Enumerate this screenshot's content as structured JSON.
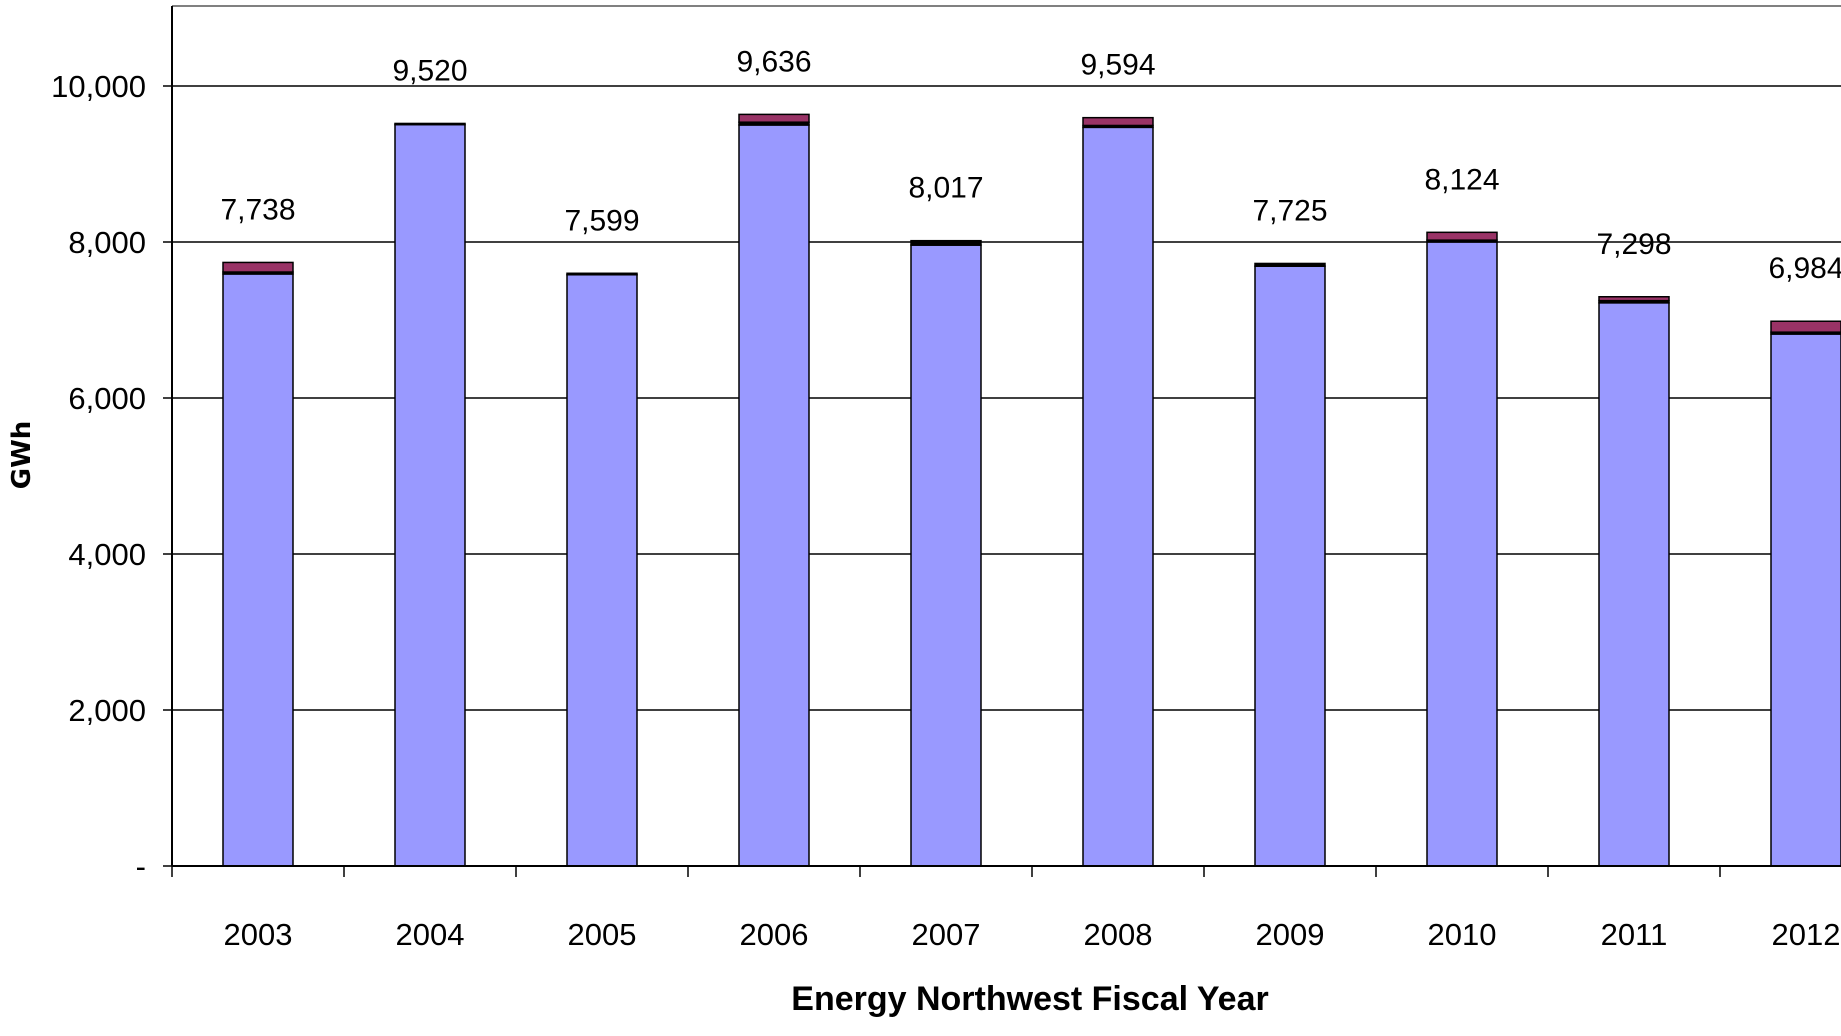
{
  "chart_data": {
    "type": "bar",
    "stacked": true,
    "title": "",
    "xlabel": "Energy Northwest Fiscal Year",
    "ylabel": "GWh",
    "ylim": [
      0,
      10000
    ],
    "yticks": [
      {
        "value": 0,
        "label": "-"
      },
      {
        "value": 2000,
        "label": "2,000"
      },
      {
        "value": 4000,
        "label": "4,000"
      },
      {
        "value": 6000,
        "label": "6,000"
      },
      {
        "value": 8000,
        "label": "8,000"
      },
      {
        "value": 10000,
        "label": "10,000"
      }
    ],
    "grid": true,
    "categories": [
      "2003",
      "2004",
      "2005",
      "2006",
      "2007",
      "2008",
      "2009",
      "2010",
      "2011",
      "2012"
    ],
    "series": [
      {
        "color": "#9999ff",
        "values": [
          7590,
          9505,
          7580,
          9500,
          7960,
          9470,
          7690,
          8000,
          7220,
          6820
        ]
      },
      {
        "color": "#000000",
        "values": [
          25,
          15,
          19,
          36,
          57,
          24,
          35,
          24,
          28,
          24
        ]
      },
      {
        "color": "#993366",
        "values": [
          123,
          0,
          0,
          100,
          0,
          100,
          0,
          100,
          50,
          140
        ]
      }
    ],
    "totals": [
      7738,
      9520,
      7599,
      9636,
      8017,
      9594,
      7725,
      8124,
      7298,
      6984
    ],
    "total_labels": [
      "7,738",
      "9,520",
      "7,599",
      "9,636",
      "8,017",
      "9,594",
      "7,725",
      "8,124",
      "7,298",
      "6,984"
    ],
    "legend": "none"
  }
}
